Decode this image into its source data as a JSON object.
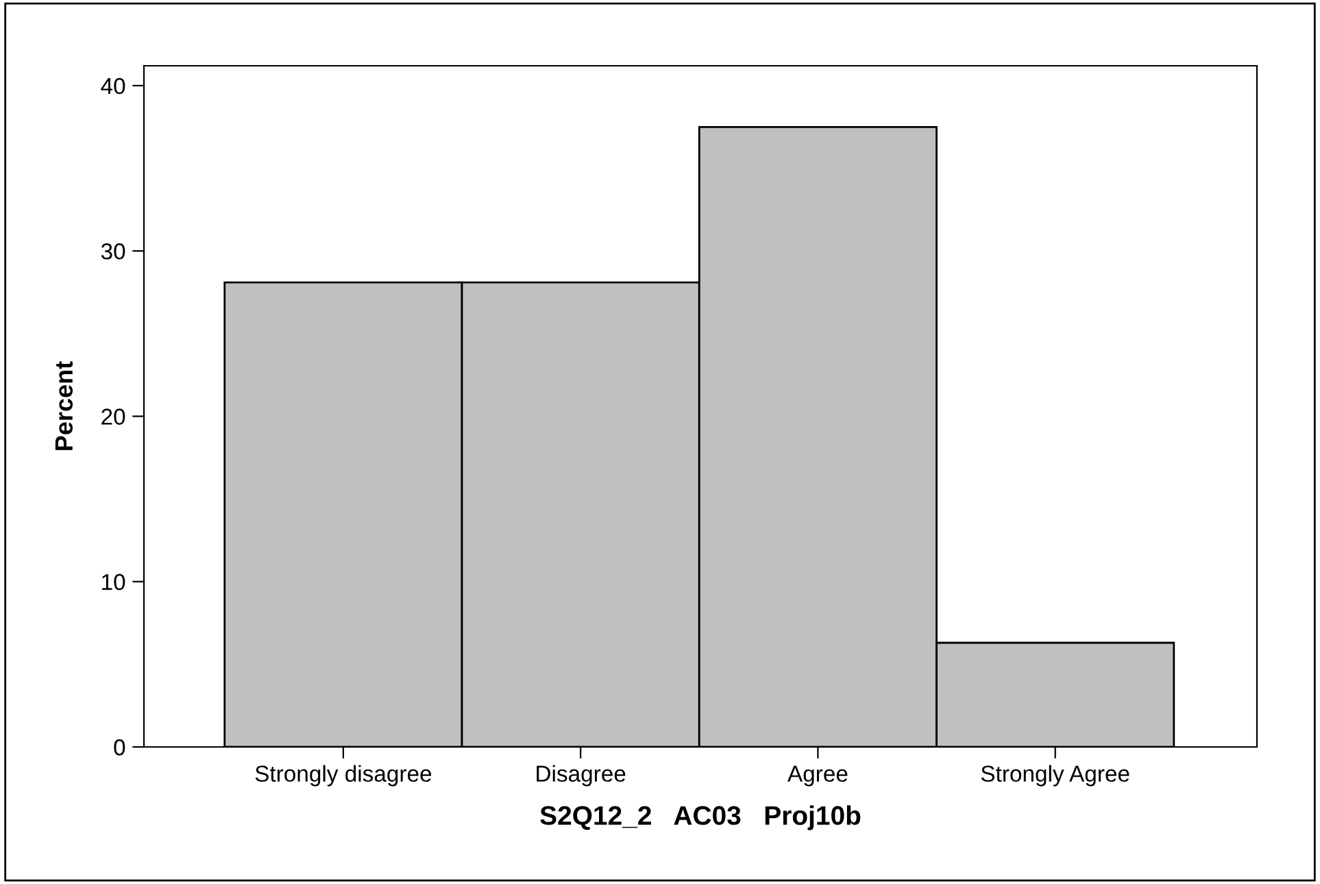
{
  "chart_data": {
    "type": "bar",
    "xlabel": "S2Q12_2   AC03   Proj10b",
    "ylabel": "Percent",
    "categories": [
      "Strongly disagree",
      "Disagree",
      "Agree",
      "Strongly Agree"
    ],
    "values": [
      28.1,
      28.1,
      37.5,
      6.3
    ],
    "color": "#c0c0c0",
    "ylim": [
      0,
      41.2
    ],
    "yticks": [
      0,
      10,
      20,
      30,
      40
    ],
    "grid": false,
    "legend": false
  }
}
